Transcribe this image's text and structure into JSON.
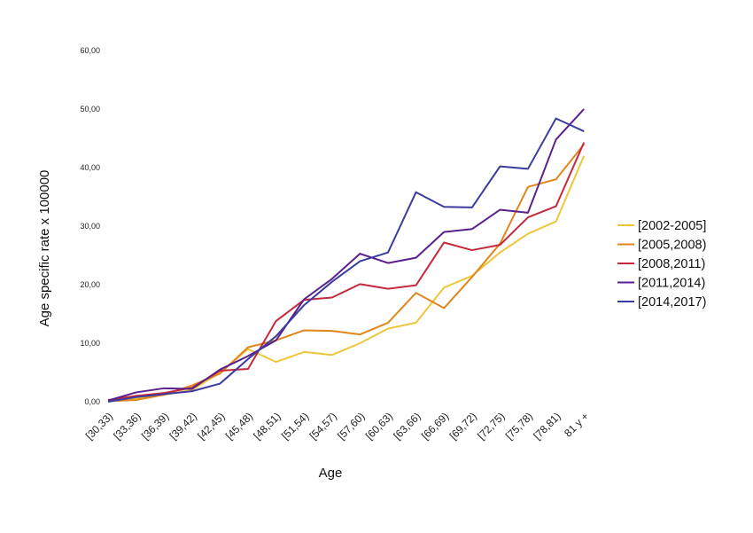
{
  "chart_data": {
    "type": "line",
    "title": "",
    "xlabel": "Age",
    "ylabel": "Age specific rate x 100000",
    "ylim": [
      0,
      60
    ],
    "yticks": [
      "0,00",
      "10,00",
      "20,00",
      "30,00",
      "40,00",
      "50,00",
      "60,00"
    ],
    "ytick_values": [
      0,
      10,
      20,
      30,
      40,
      50,
      60
    ],
    "grid": false,
    "legend_position": "right",
    "categories": [
      "[30,33)",
      "[33,36)",
      "[36,39)",
      "[39,42)",
      "[42,45)",
      "[45,48)",
      "[48,51)",
      "[51,54)",
      "[54,57)",
      "[57,60)",
      "[60,63)",
      "[63,66)",
      "[66,69)",
      "[69,72)",
      "[72,75)",
      "[75,78)",
      "[78,81)",
      "81 y +"
    ],
    "series": [
      {
        "name": "[2002-2005]",
        "color": "#eec63c",
        "values": [
          0.2,
          0.5,
          1.2,
          2.0,
          5.0,
          9.0,
          6.8,
          8.5,
          8.0,
          10.0,
          12.5,
          13.5,
          19.5,
          21.5,
          25.5,
          28.7,
          30.8,
          42.0
        ]
      },
      {
        "name": "[2005,2008)",
        "color": "#e0861c",
        "values": [
          0.1,
          0.3,
          1.2,
          2.8,
          4.8,
          9.3,
          10.5,
          12.2,
          12.1,
          11.5,
          13.5,
          18.6,
          16.0,
          21.3,
          27.0,
          36.7,
          38.0,
          44.0
        ]
      },
      {
        "name": "[2008,2011)",
        "color": "#c42a3c",
        "values": [
          0.3,
          1.0,
          1.5,
          2.4,
          5.3,
          5.6,
          13.8,
          17.4,
          17.8,
          20.1,
          19.3,
          19.9,
          27.2,
          25.9,
          26.8,
          31.5,
          33.4,
          44.3
        ]
      },
      {
        "name": "[2011,2014)",
        "color": "#5a1f8c",
        "values": [
          0.2,
          1.6,
          2.3,
          2.2,
          5.5,
          7.8,
          10.5,
          17.5,
          21.0,
          25.3,
          23.7,
          24.6,
          29.0,
          29.5,
          32.8,
          32.3,
          44.8,
          50.0
        ]
      },
      {
        "name": "[2014,2017)",
        "color": "#3b3ba0",
        "values": [
          0.0,
          0.8,
          1.3,
          1.8,
          3.1,
          7.3,
          11.2,
          16.5,
          20.5,
          24.0,
          25.5,
          35.8,
          33.3,
          33.2,
          40.2,
          39.8,
          48.4,
          46.2
        ]
      }
    ]
  }
}
